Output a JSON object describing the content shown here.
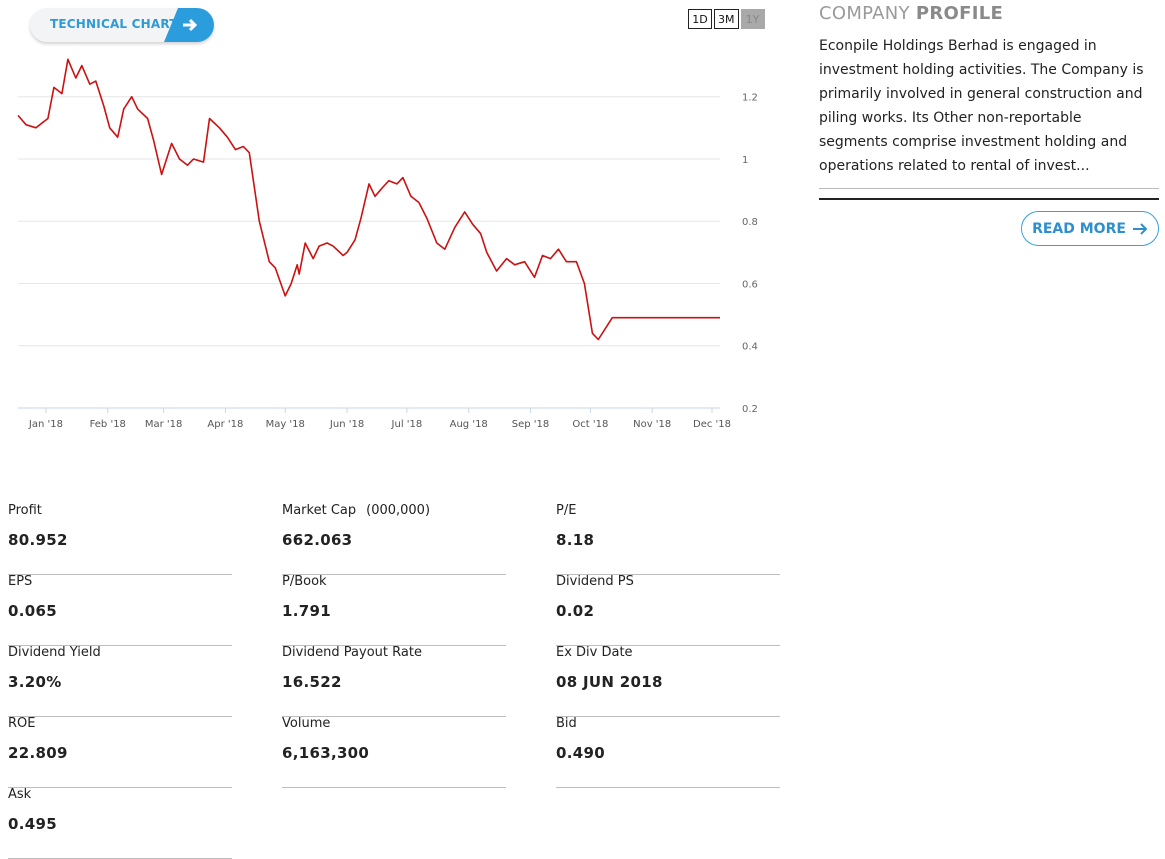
{
  "technical_chart": {
    "label": "TECHNICAL CHART",
    "icon": "arrow-right-icon"
  },
  "range_buttons": [
    {
      "label": "1D",
      "active": false
    },
    {
      "label": "3M",
      "active": false
    },
    {
      "label": "1Y",
      "active": true
    }
  ],
  "colors": {
    "line": "#cc1111",
    "accent": "#2c9ddc",
    "grid": "#e6e6e6"
  },
  "chart_data": {
    "type": "line",
    "title": "",
    "xlabel": "",
    "ylabel": "",
    "ylim": [
      0.2,
      1.35
    ],
    "y_ticks": [
      "0.2",
      "0.4",
      "0.6",
      "0.8",
      "1",
      "1.2"
    ],
    "x_ticks": [
      "Jan '18",
      "Feb '18",
      "Mar '18",
      "Apr '18",
      "May '18",
      "Jun '18",
      "Jul '18",
      "Aug '18",
      "Sep '18",
      "Oct '18",
      "Nov '18",
      "Dec '18"
    ],
    "y_axis_side": "right",
    "grid": true,
    "series": [
      {
        "x": [
          "2017-12-18",
          "2017-12-22",
          "2017-12-27",
          "2018-01-02",
          "2018-01-05",
          "2018-01-09",
          "2018-01-12",
          "2018-01-16",
          "2018-01-19",
          "2018-01-23",
          "2018-01-26",
          "2018-01-30",
          "2018-02-02",
          "2018-02-06",
          "2018-02-09",
          "2018-02-13",
          "2018-02-16",
          "2018-02-21",
          "2018-02-24",
          "2018-02-28",
          "2018-03-05",
          "2018-03-09",
          "2018-03-13",
          "2018-03-16",
          "2018-03-21",
          "2018-03-24",
          "2018-03-29",
          "2018-04-02",
          "2018-04-06",
          "2018-04-10",
          "2018-04-13",
          "2018-04-18",
          "2018-04-23",
          "2018-04-26",
          "2018-05-01",
          "2018-05-04",
          "2018-05-07",
          "2018-05-08",
          "2018-05-11",
          "2018-05-15",
          "2018-05-18",
          "2018-05-22",
          "2018-05-25",
          "2018-05-30",
          "2018-06-01",
          "2018-06-05",
          "2018-06-08",
          "2018-06-12",
          "2018-06-15",
          "2018-06-19",
          "2018-06-22",
          "2018-06-26",
          "2018-06-29",
          "2018-07-03",
          "2018-07-07",
          "2018-07-11",
          "2018-07-16",
          "2018-07-20",
          "2018-07-25",
          "2018-07-30",
          "2018-08-03",
          "2018-08-07",
          "2018-08-10",
          "2018-08-15",
          "2018-08-20",
          "2018-08-24",
          "2018-08-29",
          "2018-09-03",
          "2018-09-07",
          "2018-09-11",
          "2018-09-15",
          "2018-09-19",
          "2018-09-24",
          "2018-09-28",
          "2018-10-02",
          "2018-10-05",
          "2018-10-09",
          "2018-10-12",
          "2018-10-16",
          "2018-10-20",
          "2018-10-25",
          "2018-10-30",
          "2018-11-03",
          "2018-11-08",
          "2018-11-13",
          "2018-11-16",
          "2018-11-20",
          "2018-11-25",
          "2018-11-28",
          "2018-12-01",
          "2018-12-03",
          "2018-12-05"
        ],
        "values": [
          1.14,
          1.11,
          1.1,
          1.13,
          1.23,
          1.21,
          1.32,
          1.26,
          1.3,
          1.24,
          1.25,
          1.17,
          1.1,
          1.07,
          1.16,
          1.2,
          1.16,
          1.13,
          1.06,
          0.95,
          1.05,
          1.0,
          0.98,
          1.0,
          0.99,
          1.13,
          1.1,
          1.07,
          1.03,
          1.04,
          1.02,
          0.8,
          0.67,
          0.65,
          0.56,
          0.6,
          0.66,
          0.63,
          0.73,
          0.68,
          0.72,
          0.73,
          0.72,
          0.69,
          0.7,
          0.74,
          0.81,
          0.92,
          0.88,
          0.91,
          0.93,
          0.92,
          0.94,
          0.88,
          0.86,
          0.81,
          0.73,
          0.71,
          0.78,
          0.83,
          0.79,
          0.76,
          0.7,
          0.64,
          0.68,
          0.66,
          0.67,
          0.62,
          0.69,
          0.68,
          0.71,
          0.67,
          0.67,
          0.6,
          0.44,
          0.42,
          0.46,
          0.49,
          0.49,
          0.49,
          0.49,
          0.49,
          0.49,
          0.49,
          0.49,
          0.49,
          0.49,
          0.49,
          0.49,
          0.49,
          0.49,
          0.49
        ]
      }
    ]
  },
  "profile": {
    "title_light": "COMPANY",
    "title_bold": "PROFILE",
    "text": "Econpile Holdings Berhad is engaged in investment holding activities. The Company is primarily involved in general construction and piling works. Its Other non-reportable segments comprise investment holding and operations related to rental of invest...",
    "read_more": "READ MORE"
  },
  "stats": [
    {
      "label": "Profit",
      "value": "80.952"
    },
    {
      "label": "Market Cap",
      "unit": "(000,000)",
      "value": "662.063"
    },
    {
      "label": "P/E",
      "value": "8.18"
    },
    {
      "label": "EPS",
      "value": "0.065"
    },
    {
      "label": "P/Book",
      "value": "1.791"
    },
    {
      "label": "Dividend PS",
      "value": "0.02"
    },
    {
      "label": "Dividend Yield",
      "value": "3.20%"
    },
    {
      "label": "Dividend Payout Rate",
      "value": "16.522"
    },
    {
      "label": "Ex Div Date",
      "value": "08 JUN 2018"
    },
    {
      "label": "ROE",
      "value": "22.809"
    },
    {
      "label": "Volume",
      "value": "6,163,300"
    },
    {
      "label": "Bid",
      "value": "0.490"
    },
    {
      "label": "Ask",
      "value": "0.495"
    }
  ]
}
